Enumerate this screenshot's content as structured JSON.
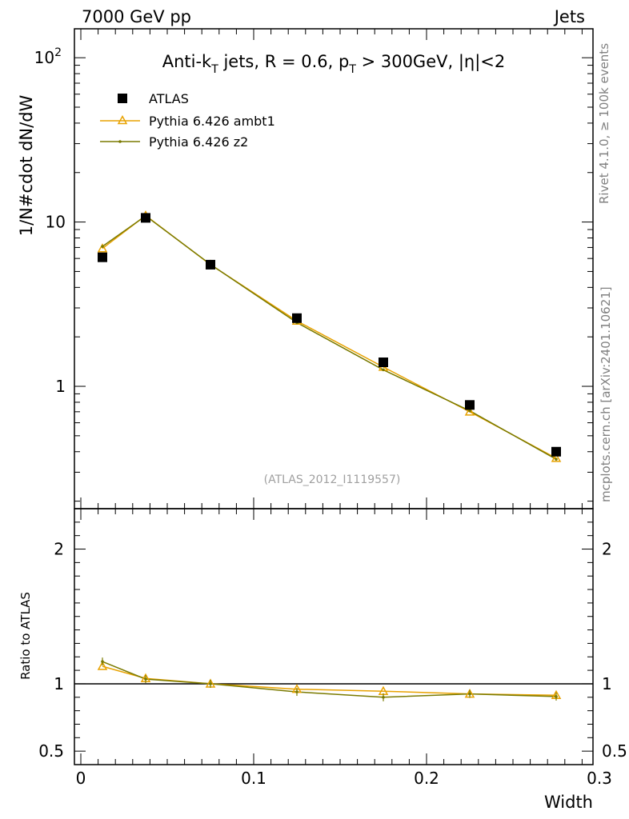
{
  "header": {
    "left": "7000 GeV pp",
    "right": "Jets"
  },
  "side_labels": {
    "rivet": "Rivet 4.1.0, ≥ 100k events",
    "mcplots": "mcplots.cern.ch [arXiv:2401.10621]"
  },
  "chart_data": {
    "type": "line",
    "title_parts": {
      "a": "Anti-k",
      "a_sub": "T",
      "b": " jets, R = 0.6, p",
      "b_sub": "T",
      "c": " > 300GeV, |",
      "eta": "η",
      "d": "|<2"
    },
    "watermark": "(ATLAS_2012_I1119557)",
    "xlabel": "Width",
    "ylabel": "1/N#cdot dN/dW",
    "ratio_ylabel": "Ratio to ATLAS",
    "xlim": [
      0,
      0.3
    ],
    "ylim": [
      0.18,
      150
    ],
    "ratio_ylim": [
      0.4,
      2.3
    ],
    "y_scale": "log",
    "x": [
      0.0125,
      0.0375,
      0.075,
      0.125,
      0.175,
      0.225,
      0.275
    ],
    "series": [
      {
        "name": "ATLAS",
        "color": "#000000",
        "marker": "square",
        "values": [
          6.1,
          10.6,
          5.5,
          2.6,
          1.4,
          0.77,
          0.4
        ]
      },
      {
        "name": "Pythia 6.426 ambt1",
        "color": "#e8a200",
        "marker": "triangle",
        "values": [
          6.9,
          10.95,
          5.5,
          2.5,
          1.31,
          0.7,
          0.365
        ]
      },
      {
        "name": "Pythia 6.426 z2",
        "color": "#7a7a00",
        "marker": "dot",
        "values": [
          7.1,
          10.9,
          5.52,
          2.44,
          1.26,
          0.71,
          0.36
        ]
      }
    ],
    "ratio_series": [
      {
        "name": "Pythia 6.426 ambt1",
        "values": [
          1.13,
          1.04,
          1.0,
          0.96,
          0.945,
          0.925,
          0.915
        ]
      },
      {
        "name": "Pythia 6.426 z2",
        "values": [
          1.165,
          1.035,
          1.0,
          0.94,
          0.9,
          0.925,
          0.905
        ]
      }
    ],
    "x_ticks": [
      {
        "value": 0,
        "label": "0"
      },
      {
        "value": 0.1,
        "label": "0.1"
      },
      {
        "value": 0.2,
        "label": "0.2"
      },
      {
        "value": 0.3,
        "label": "0.3"
      }
    ],
    "y_ticks": [
      {
        "value": 1,
        "label": "1"
      },
      {
        "value": 10,
        "label": "10"
      },
      {
        "value": 100,
        "label": "10",
        "sup": "2"
      }
    ],
    "ratio_ticks": [
      {
        "value": 0.5,
        "label": "0.5"
      },
      {
        "value": 1,
        "label": "1"
      },
      {
        "value": 2,
        "label": "2"
      }
    ]
  }
}
